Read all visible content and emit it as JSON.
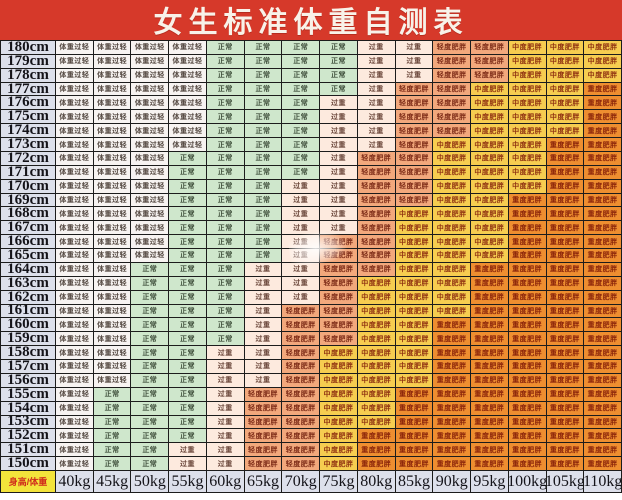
{
  "title": "女生标准体重自测表",
  "chart_data": {
    "type": "table",
    "title": "女生标准体重自测表",
    "corner_label": "身高/体重",
    "col_labels": [
      "40kg",
      "45kg",
      "50kg",
      "55kg",
      "60kg",
      "65kg",
      "70kg",
      "75kg",
      "80kg",
      "85kg",
      "90kg",
      "95kg",
      "100kg",
      "105kg",
      "110kg"
    ],
    "categories": [
      {
        "label": "体重过轻",
        "bg": "#f7f3f1",
        "fg": "#51453e"
      },
      {
        "label": "正常",
        "bg": "#cfe7cc",
        "fg": "#3d4d39"
      },
      {
        "label": "过重",
        "bg": "#fdeade",
        "fg": "#6a463a"
      },
      {
        "label": "轻度肥胖",
        "bg": "#f2a87c",
        "fg": "#7c2a16"
      },
      {
        "label": "中度肥胖",
        "bg": "#f6cd50",
        "fg": "#8f3110"
      },
      {
        "label": "重度肥胖",
        "bg": "#ee8e30",
        "fg": "#8a2309"
      }
    ],
    "rows": [
      {
        "height": "180cm",
        "cells": "000011112233444"
      },
      {
        "height": "179cm",
        "cells": "000011112233444"
      },
      {
        "height": "178cm",
        "cells": "000011112233444"
      },
      {
        "height": "177cm",
        "cells": "000011112334445"
      },
      {
        "height": "176cm",
        "cells": "000011122334445"
      },
      {
        "height": "175cm",
        "cells": "000011122334445"
      },
      {
        "height": "174cm",
        "cells": "000011122334445"
      },
      {
        "height": "173cm",
        "cells": "000011122344455"
      },
      {
        "height": "172cm",
        "cells": "000111123344455"
      },
      {
        "height": "171cm",
        "cells": "000111123344455"
      },
      {
        "height": "170cm",
        "cells": "000111223344455"
      },
      {
        "height": "169cm",
        "cells": "000111223344555"
      },
      {
        "height": "168cm",
        "cells": "000111223444555"
      },
      {
        "height": "167cm",
        "cells": "000111223444555"
      },
      {
        "height": "166cm",
        "cells": "000111233444555"
      },
      {
        "height": "165cm",
        "cells": "000111233444555"
      },
      {
        "height": "164cm",
        "cells": "001112233445555"
      },
      {
        "height": "163cm",
        "cells": "001112234445555"
      },
      {
        "height": "162cm",
        "cells": "001112234445555"
      },
      {
        "height": "161cm",
        "cells": "001112334445555"
      },
      {
        "height": "160cm",
        "cells": "001112334455555"
      },
      {
        "height": "159cm",
        "cells": "001112334455555"
      },
      {
        "height": "158cm",
        "cells": "001122344455555"
      },
      {
        "height": "157cm",
        "cells": "001122344455555"
      },
      {
        "height": "156cm",
        "cells": "001122344455555"
      },
      {
        "height": "155cm",
        "cells": "011123344555555"
      },
      {
        "height": "154cm",
        "cells": "011123344555555"
      },
      {
        "height": "153cm",
        "cells": "011123344555555"
      },
      {
        "height": "152cm",
        "cells": "011123345555555"
      },
      {
        "height": "151cm",
        "cells": "011223345555555"
      },
      {
        "height": "150cm",
        "cells": "011223345555555"
      }
    ]
  },
  "colors": {
    "title_bg": "#d6392a",
    "title_fg": "#f8f2e9",
    "label_bg": "#dde0eb",
    "label_fg": "#141319",
    "corner_bg": "#f3e43b",
    "corner_fg": "#d02b1c",
    "grid_line": "#1c1c1c",
    "page_bg": "#ffffff"
  }
}
